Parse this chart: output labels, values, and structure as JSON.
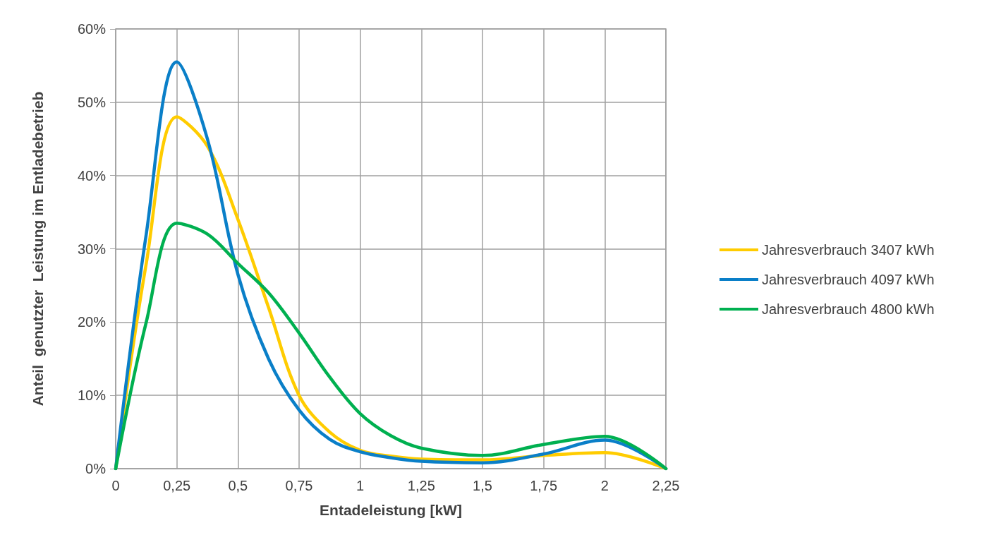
{
  "chart_data": {
    "type": "line",
    "xlabel": "Entadeleistung [kW]",
    "ylabel": "Anteil  genutzter  Leistung im Entladebetrieb",
    "x": [
      0,
      0.125,
      0.25,
      0.375,
      0.5,
      0.625,
      0.75,
      0.875,
      1,
      1.125,
      1.25,
      1.5,
      1.75,
      2,
      2.25
    ],
    "series": [
      {
        "name": "Jahresverbrauch 3407 kWh",
        "color": "#ffcc00",
        "values": [
          0,
          28,
          48,
          44,
          34,
          22,
          10,
          5,
          2.5,
          1.7,
          1.3,
          1.2,
          1.8,
          2.2,
          0
        ]
      },
      {
        "name": "Jahresverbrauch 4097 kWh",
        "color": "#0a7fc8",
        "values": [
          0,
          32,
          55.5,
          45,
          26.5,
          15,
          8,
          4,
          2.3,
          1.5,
          1.0,
          0.8,
          2,
          3.9,
          0
        ]
      },
      {
        "name": "Jahresverbrauch 4800 kWh",
        "color": "#00b050",
        "values": [
          0,
          20,
          33.5,
          32,
          28,
          24,
          18.5,
          12.5,
          7.5,
          4.5,
          2.8,
          1.8,
          3.3,
          4.4,
          0
        ]
      }
    ],
    "xlim": [
      0,
      2.25
    ],
    "xticks": [
      0,
      {
        "value": 0.25,
        "label": "0,25"
      },
      {
        "value": 0.5,
        "label": "0,5"
      },
      {
        "value": 0.75,
        "label": "0,75"
      },
      1,
      {
        "value": 1.25,
        "label": "1,25"
      },
      {
        "value": 1.5,
        "label": "1,5"
      },
      {
        "value": 1.75,
        "label": "1,75"
      },
      2,
      {
        "value": 2.25,
        "label": "2,25"
      }
    ],
    "ylim": [
      0,
      60
    ],
    "yticks": [
      {
        "value": 0,
        "label": "0%"
      },
      {
        "value": 10,
        "label": "10%"
      },
      {
        "value": 20,
        "label": "20%"
      },
      {
        "value": 30,
        "label": "30%"
      },
      {
        "value": 40,
        "label": "40%"
      },
      {
        "value": 50,
        "label": "50%"
      },
      {
        "value": 60,
        "label": "60%"
      }
    ],
    "grid": true,
    "legend": "right",
    "marker": "none",
    "line_style": "solid"
  }
}
